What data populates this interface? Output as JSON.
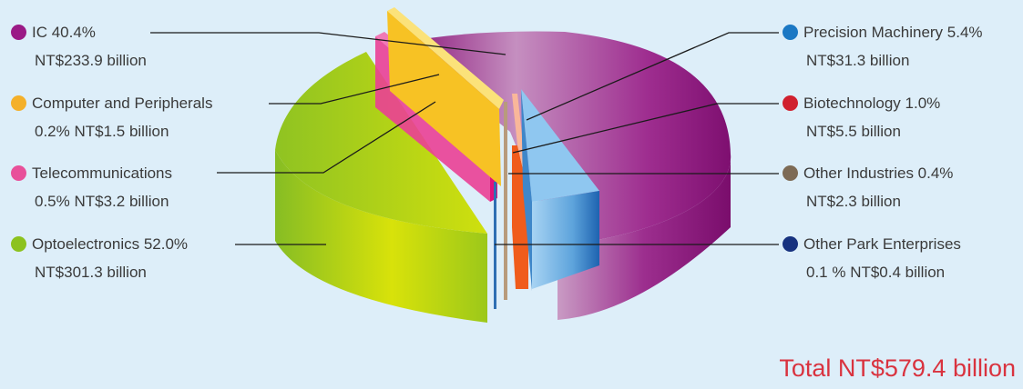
{
  "chart_data": {
    "type": "pie",
    "slices": [
      {
        "name": "IC",
        "percent_text": "40.4%",
        "value_text": "NT$233.9 billion",
        "percent": 40.4,
        "value": 233.9,
        "color": "#9a1a86"
      },
      {
        "name": "Computer and Peripherals",
        "percent_text": "0.2%",
        "value_text": "NT$1.5 billion",
        "percent": 0.2,
        "value": 1.5,
        "color": "#f4b02a"
      },
      {
        "name": "Telecommunications",
        "percent_text": "0.5%",
        "value_text": "NT$3.2 billion",
        "percent": 0.5,
        "value": 3.2,
        "color": "#e8509a"
      },
      {
        "name": "Optoelectronics",
        "percent_text": "52.0%",
        "value_text": "NT$301.3 billion",
        "percent": 52.0,
        "value": 301.3,
        "color": "#8cc21e"
      },
      {
        "name": "Precision Machinery",
        "percent_text": "5.4%",
        "value_text": "NT$31.3 billion",
        "percent": 5.4,
        "value": 31.3,
        "color": "#1b78c4"
      },
      {
        "name": "Biotechnology",
        "percent_text": "1.0%",
        "value_text": "NT$5.5 billion",
        "percent": 1.0,
        "value": 5.5,
        "color": "#d0202e"
      },
      {
        "name": "Other Industries",
        "percent_text": "0.4%",
        "value_text": "NT$2.3 billion",
        "percent": 0.4,
        "value": 2.3,
        "color": "#7d6a55"
      },
      {
        "name": "Other Park Enterprises",
        "percent_text": "0.1 %",
        "value_text": "NT$0.4 billion",
        "percent": 0.1,
        "value": 0.4,
        "color": "#17327f"
      }
    ],
    "total_text": "Total NT$579.4 billion",
    "total": 579.4
  },
  "labels": {
    "ic": {
      "line1": "IC    40.4%",
      "line2": "NT$233.9 billion"
    },
    "computer": {
      "line1": "Computer and Peripherals",
      "line2": "0.2%  NT$1.5 billion"
    },
    "telecom": {
      "line1": "Telecommunications",
      "line2": "0.5%  NT$3.2 billion"
    },
    "opto": {
      "line1": "Optoelectronics  52.0%",
      "line2": "NT$301.3 billion"
    },
    "precision": {
      "line1": "Precision Machinery  5.4%",
      "line2": "NT$31.3 billion"
    },
    "biotech": {
      "line1": "Biotechnology  1.0%",
      "line2": "NT$5.5 billion"
    },
    "other_ind": {
      "line1": "Other Industries   0.4%",
      "line2": "NT$2.3 billion"
    },
    "other_park": {
      "line1": "Other Park Enterprises",
      "line2": "0.1 %  NT$0.4 billion"
    }
  },
  "colors": {
    "background": "#ddeef9",
    "total_text": "#d9333f"
  }
}
